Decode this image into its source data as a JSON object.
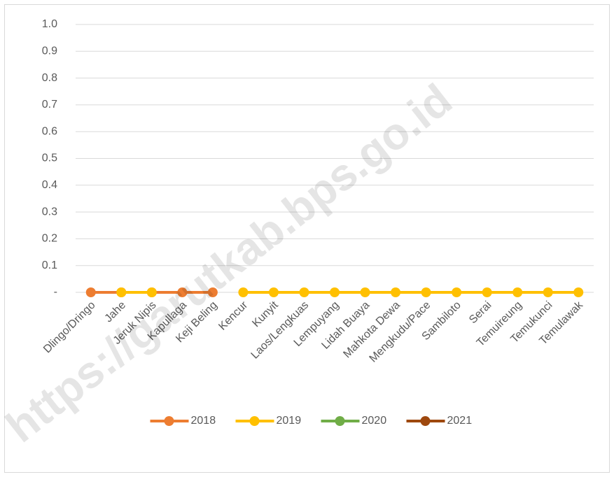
{
  "chart_data": {
    "type": "line",
    "watermark": "https://garutkab.bps.go.id",
    "categories": [
      "Dlingo/Dringo",
      "Jahe",
      "Jeruk Nipis",
      "Kapullaga",
      "Keji Beling",
      "Kencur",
      "Kunyit",
      "Laos/Lengkuas",
      "Lempuyang",
      "Lidah Buaya",
      "Mahkota Dewa",
      "Mengkudu/Pace",
      "Sambiloto",
      "Serai",
      "Temuireung",
      "Temukunci",
      "Temulawak"
    ],
    "series": [
      {
        "name": "2018",
        "color": "#ed7d31",
        "values": [
          0,
          0,
          0,
          0,
          0,
          null,
          null,
          null,
          null,
          null,
          null,
          null,
          null,
          null,
          null,
          null,
          null
        ]
      },
      {
        "name": "2019",
        "color": "#ffc000",
        "values": [
          null,
          0,
          0,
          null,
          null,
          0,
          0,
          0,
          0,
          0,
          0,
          0,
          0,
          0,
          0,
          0,
          0
        ]
      },
      {
        "name": "2020",
        "color": "#70ad47",
        "values": [
          null,
          null,
          null,
          null,
          null,
          null,
          null,
          null,
          null,
          null,
          null,
          null,
          null,
          null,
          null,
          null,
          null
        ]
      },
      {
        "name": "2021",
        "color": "#9e480e",
        "values": [
          null,
          null,
          null,
          null,
          null,
          null,
          null,
          null,
          null,
          null,
          null,
          null,
          null,
          null,
          null,
          null,
          null
        ]
      }
    ],
    "ylim": [
      0,
      1
    ],
    "yticks": [
      {
        "value": 0,
        "label": "-"
      },
      0.1,
      0.2,
      0.3,
      0.4,
      0.5,
      0.6,
      0.7,
      0.8,
      0.9,
      {
        "value": 1,
        "label": "1.0"
      }
    ],
    "grid": true,
    "legend": "bottom"
  }
}
